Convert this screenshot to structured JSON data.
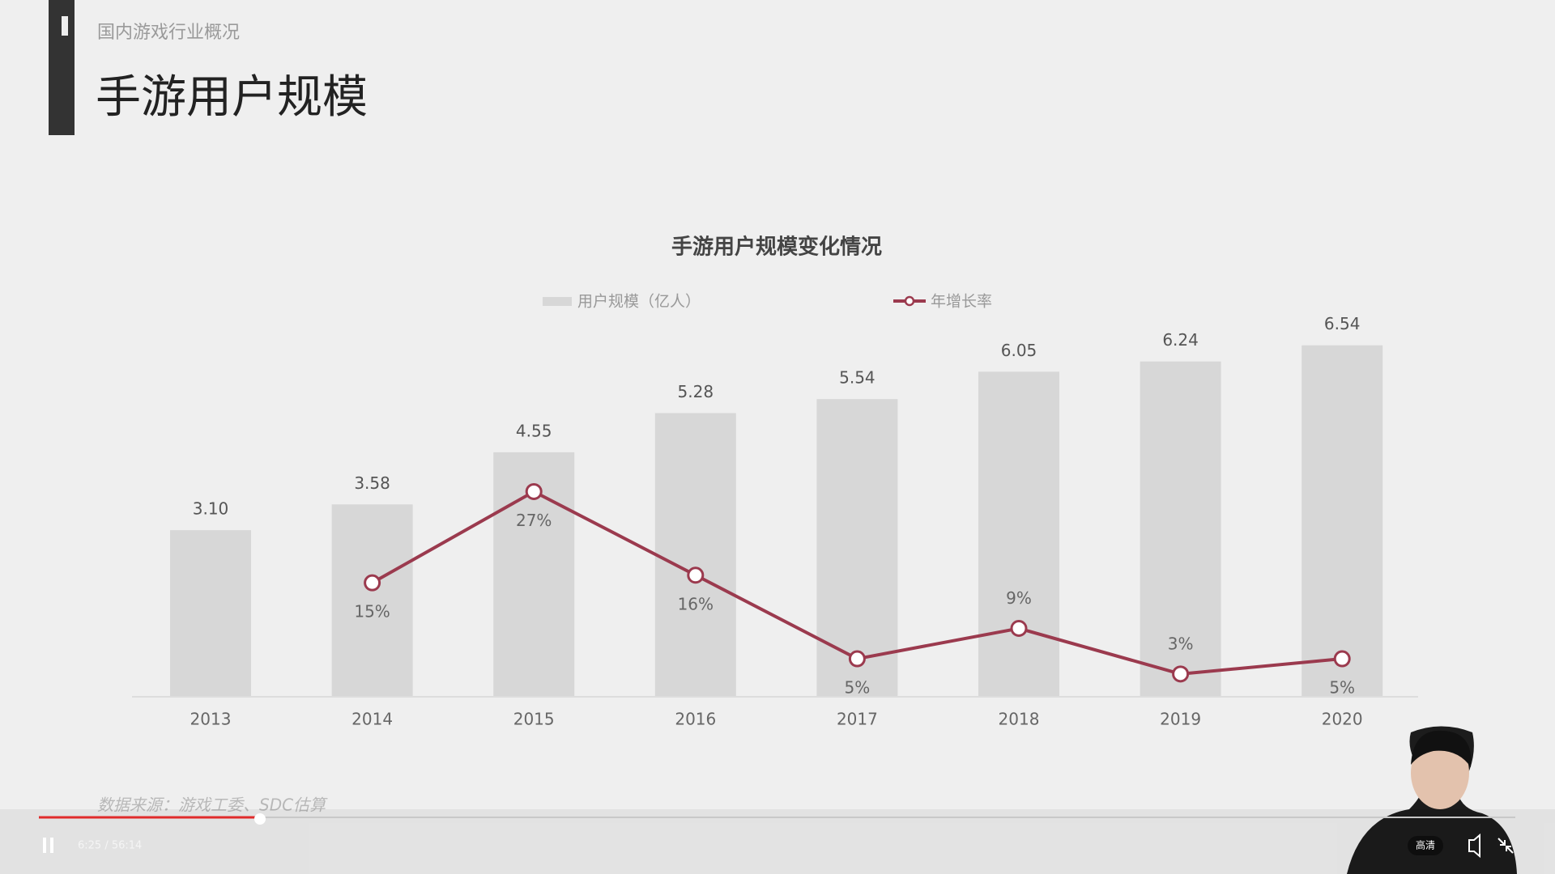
{
  "header": {
    "subtitle": "国内游戏行业概况",
    "title": "手游用户规模"
  },
  "chart_data": {
    "type": "bar",
    "title": "手游用户规模变化情况",
    "categories": [
      "2013",
      "2014",
      "2015",
      "2016",
      "2017",
      "2018",
      "2019",
      "2020"
    ],
    "series": [
      {
        "name": "用户规模（亿人）",
        "type": "bar",
        "color": "#d7d7d7",
        "values": [
          3.1,
          3.58,
          4.55,
          5.28,
          5.54,
          6.05,
          6.24,
          6.54
        ],
        "value_labels": [
          "3.10",
          "3.58",
          "4.55",
          "5.28",
          "5.54",
          "6.05",
          "6.24",
          "6.54"
        ]
      },
      {
        "name": "年增长率",
        "type": "line",
        "color": "#9b3a4e",
        "values": [
          null,
          15,
          27,
          16,
          5,
          9,
          3,
          5
        ],
        "value_labels": [
          null,
          "15%",
          "27%",
          "16%",
          "5%",
          "9%",
          "3%",
          "5%"
        ]
      }
    ]
  },
  "source": "数据来源：游戏工委、SDC估算",
  "player": {
    "time": "6:25 / 56:14",
    "quality": "高清"
  }
}
